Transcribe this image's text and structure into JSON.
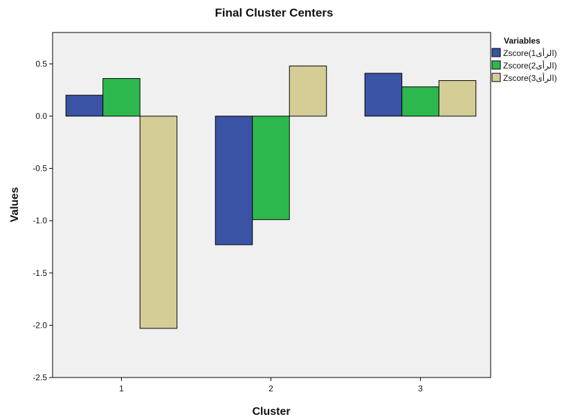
{
  "chart_data": {
    "type": "bar",
    "title": "Final Cluster Centers",
    "xlabel": "Cluster",
    "ylabel": "Values",
    "categories": [
      "1",
      "2",
      "3"
    ],
    "series": [
      {
        "name": "Zscore(1الرأى)",
        "color": "#3a53a4",
        "values": [
          0.2,
          -1.23,
          0.41
        ]
      },
      {
        "name": "Zscore(2الرأى)",
        "color": "#2db84d",
        "values": [
          0.36,
          -0.99,
          0.28
        ]
      },
      {
        "name": "Zscore(3الرأى)",
        "color": "#d5cd96",
        "values": [
          -2.03,
          0.48,
          0.34
        ]
      }
    ],
    "ylim": [
      -2.5,
      0.8
    ],
    "yticks": [
      "-2.5",
      "-2.0",
      "-1.5",
      "-1.0",
      "-0.5",
      "0.0",
      "0.5"
    ],
    "grid": false,
    "legend_title": "Variables",
    "legend_position": "top-right",
    "plot_background": "#f0f0f0"
  }
}
